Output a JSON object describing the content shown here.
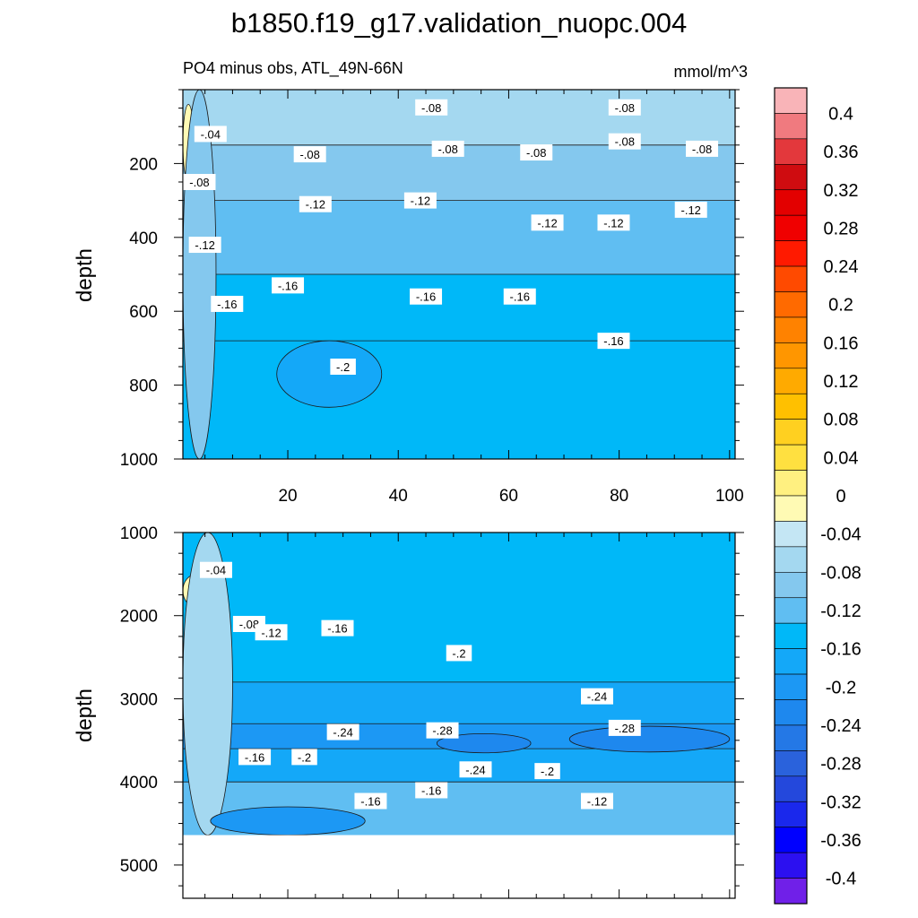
{
  "title": "b1850.f19_g17.validation_nuopc.004",
  "chart_data": [
    {
      "type": "heatmap",
      "panel": "upper",
      "title": "PO4 minus obs, ATL_49N-66N",
      "units": "mmol/m^3",
      "xlabel": "",
      "ylabel": "depth",
      "xlim": [
        1,
        101
      ],
      "ylim": [
        1000,
        0
      ],
      "xticks": [
        20,
        40,
        60,
        80,
        100
      ],
      "yticks": [
        200,
        400,
        600,
        800,
        1000
      ],
      "bands": [
        {
          "depth_top": 0,
          "depth_bottom": 150,
          "value": -0.06
        },
        {
          "depth_top": 150,
          "depth_bottom": 300,
          "value": -0.1
        },
        {
          "depth_top": 300,
          "depth_bottom": 500,
          "value": -0.14
        },
        {
          "depth_top": 500,
          "depth_bottom": 680,
          "value": -0.17
        },
        {
          "depth_top": 680,
          "depth_bottom": 1000,
          "value": -0.19
        }
      ],
      "regions": [
        {
          "x0": 1,
          "x1": 3,
          "depth_top": 40,
          "depth_bottom": 250,
          "value": 0.02
        },
        {
          "x0": 1,
          "x1": 7,
          "depth_top": 0,
          "depth_bottom": 1000,
          "value": -0.1
        },
        {
          "x0": 18,
          "x1": 37,
          "depth_top": 680,
          "depth_bottom": 860,
          "value": -0.21
        }
      ],
      "contour_labels": [
        {
          "text": "-.08",
          "x": 46,
          "depth": 48
        },
        {
          "text": "-.08",
          "x": 81,
          "depth": 48
        },
        {
          "text": "-.04",
          "x": 6,
          "depth": 120
        },
        {
          "text": "-.08",
          "x": 24,
          "depth": 175
        },
        {
          "text": "-.08",
          "x": 49,
          "depth": 160
        },
        {
          "text": "-.08",
          "x": 65,
          "depth": 170
        },
        {
          "text": "-.08",
          "x": 81,
          "depth": 140
        },
        {
          "text": "-.08",
          "x": 95,
          "depth": 160
        },
        {
          "text": "-.08",
          "x": 4,
          "depth": 250
        },
        {
          "text": "-.12",
          "x": 25,
          "depth": 310
        },
        {
          "text": "-.12",
          "x": 44,
          "depth": 300
        },
        {
          "text": "-.12",
          "x": 67,
          "depth": 360
        },
        {
          "text": "-.12",
          "x": 79,
          "depth": 360
        },
        {
          "text": "-.12",
          "x": 93,
          "depth": 325
        },
        {
          "text": "-.12",
          "x": 5,
          "depth": 420
        },
        {
          "text": "-.16",
          "x": 9,
          "depth": 580
        },
        {
          "text": "-.16",
          "x": 20,
          "depth": 530
        },
        {
          "text": "-.16",
          "x": 45,
          "depth": 560
        },
        {
          "text": "-.16",
          "x": 62,
          "depth": 560
        },
        {
          "text": "-.16",
          "x": 79,
          "depth": 680
        },
        {
          "text": "-.2",
          "x": 30,
          "depth": 750
        }
      ]
    },
    {
      "type": "heatmap",
      "panel": "lower",
      "title": "",
      "xlabel": "",
      "ylabel": "depth",
      "xlim": [
        1,
        101
      ],
      "ylim": [
        5400,
        1000
      ],
      "yticks": [
        1000,
        2000,
        3000,
        4000,
        5000
      ],
      "data_bottom_depth": 4640,
      "bands": [
        {
          "depth_top": 1000,
          "depth_bottom": 2800,
          "value": -0.18
        },
        {
          "depth_top": 2800,
          "depth_bottom": 3300,
          "value": -0.23
        },
        {
          "depth_top": 3300,
          "depth_bottom": 3600,
          "value": -0.27
        },
        {
          "depth_top": 3600,
          "depth_bottom": 4000,
          "value": -0.2
        },
        {
          "depth_top": 4000,
          "depth_bottom": 4640,
          "value": -0.13
        }
      ],
      "regions": [
        {
          "x0": 1,
          "x1": 6,
          "depth_top": 1500,
          "depth_bottom": 1900,
          "value": 0.02
        },
        {
          "x0": 1,
          "x1": 10,
          "depth_top": 1000,
          "depth_bottom": 4640,
          "value": -0.06
        },
        {
          "x0": 47,
          "x1": 64,
          "depth_top": 3420,
          "depth_bottom": 3650,
          "value": -0.3
        },
        {
          "x0": 71,
          "x1": 100,
          "depth_top": 3330,
          "depth_bottom": 3640,
          "value": -0.3
        },
        {
          "x0": 6,
          "x1": 34,
          "depth_top": 4300,
          "depth_bottom": 4640,
          "value": -0.26
        }
      ],
      "contour_labels": [
        {
          "text": "-.04",
          "x": 7,
          "depth": 1450
        },
        {
          "text": "-.08",
          "x": 13,
          "depth": 2100
        },
        {
          "text": "-.12",
          "x": 17,
          "depth": 2200
        },
        {
          "text": "-.16",
          "x": 29,
          "depth": 2150
        },
        {
          "text": "-.2",
          "x": 51,
          "depth": 2450
        },
        {
          "text": "-.24",
          "x": 30,
          "depth": 3400
        },
        {
          "text": "-.24",
          "x": 76,
          "depth": 2970
        },
        {
          "text": "-.28",
          "x": 48,
          "depth": 3380
        },
        {
          "text": "-.28",
          "x": 81,
          "depth": 3350
        },
        {
          "text": "-.16",
          "x": 14,
          "depth": 3700
        },
        {
          "text": "-.2",
          "x": 23,
          "depth": 3700
        },
        {
          "text": "-.24",
          "x": 54,
          "depth": 3850
        },
        {
          "text": "-.2",
          "x": 67,
          "depth": 3870
        },
        {
          "text": "-.16",
          "x": 35,
          "depth": 4230
        },
        {
          "text": "-.16",
          "x": 46,
          "depth": 4100
        },
        {
          "text": "-.12",
          "x": 76,
          "depth": 4230
        }
      ]
    }
  ],
  "colorbar": {
    "labels": [
      "0.4",
      "0.36",
      "0.32",
      "0.28",
      "0.24",
      "0.2",
      "0.16",
      "0.12",
      "0.08",
      "0.04",
      "0",
      "-0.04",
      "-0.08",
      "-0.12",
      "-0.16",
      "-0.2",
      "-0.24",
      "-0.28",
      "-0.32",
      "-0.36",
      "-0.4"
    ],
    "colors": [
      "#f9b4b8",
      "#f07a7f",
      "#e3383c",
      "#cf0c10",
      "#e30000",
      "#f00000",
      "#ff1a00",
      "#ff4a00",
      "#ff6a00",
      "#ff8200",
      "#ff9600",
      "#ffaa00",
      "#ffc000",
      "#ffd020",
      "#ffe040",
      "#fff080",
      "#fffab4",
      "#c4e6f4",
      "#a4d8f0",
      "#84c8ee",
      "#60bef2",
      "#00b8f8",
      "#14a8f8",
      "#1c98f4",
      "#1e88ee",
      "#2478e6",
      "#2a62dc",
      "#2448dc",
      "#1a28ec",
      "#0000ff",
      "#2c10f0",
      "#7020e8"
    ]
  }
}
